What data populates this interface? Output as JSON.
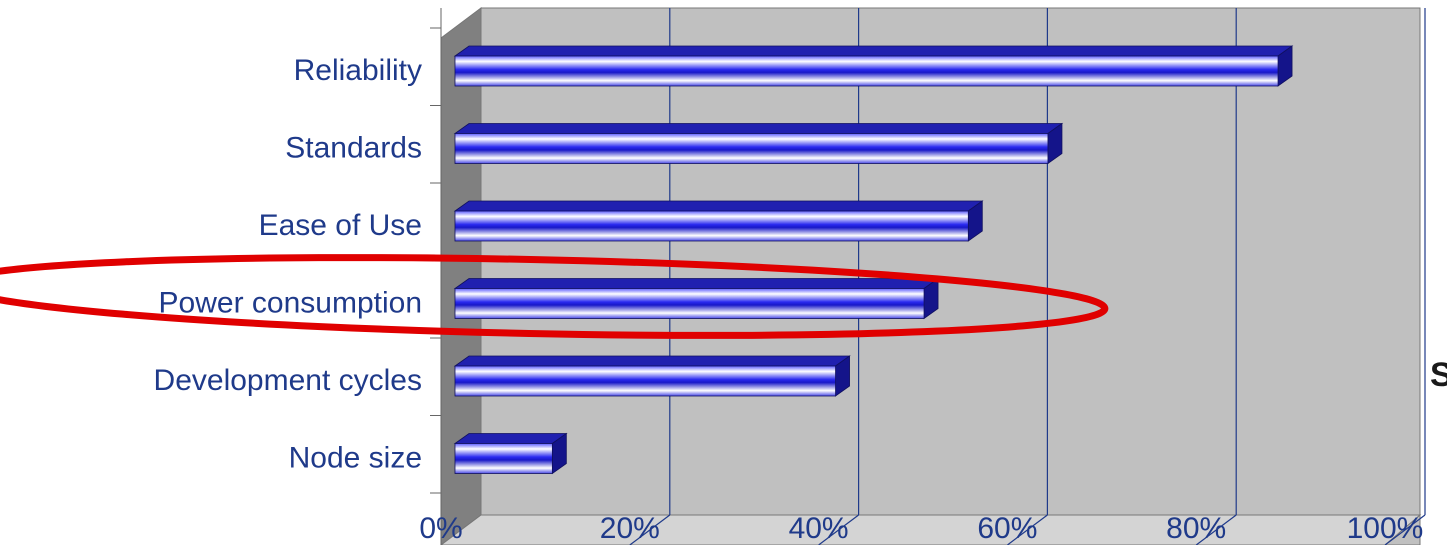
{
  "chart_data": {
    "type": "bar",
    "orientation": "horizontal",
    "style": "3d",
    "categories": [
      "Reliability",
      "Standards",
      "Ease of Use",
      "Power consumption",
      "Development cycles",
      "Node size"
    ],
    "values": [
      93,
      67,
      58,
      53,
      43,
      11
    ],
    "xlim": [
      0,
      100
    ],
    "x_ticks": [
      "0%",
      "20%",
      "40%",
      "60%",
      "80%",
      "100%"
    ],
    "grid": true,
    "legend": "none",
    "highlight": {
      "category": "Power consumption",
      "shape": "ellipse",
      "color": "#e00000"
    }
  },
  "colors": {
    "bar": "#3333ee",
    "plot_back": "#c0c0c0",
    "plot_left_wall": "#808080",
    "gridline": "#1f3a8a",
    "label_text": "#1f3a8a"
  },
  "clipped_text": "S"
}
